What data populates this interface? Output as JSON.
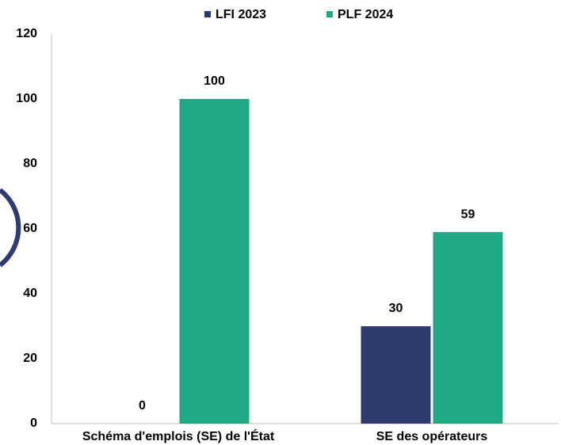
{
  "chart_data": {
    "type": "bar",
    "categories": [
      "Schéma d'emplois (SE) de l'État",
      "SE des opérateurs"
    ],
    "series": [
      {
        "name": "LFI 2023",
        "color": "#2e3b6e",
        "values": [
          0,
          30
        ]
      },
      {
        "name": "PLF 2024",
        "color": "#21a884",
        "values": [
          100,
          59
        ]
      }
    ],
    "ylim": [
      0,
      120
    ],
    "yticks": [
      0,
      20,
      40,
      60,
      80,
      100,
      120
    ],
    "grid": false,
    "legend": "top"
  }
}
